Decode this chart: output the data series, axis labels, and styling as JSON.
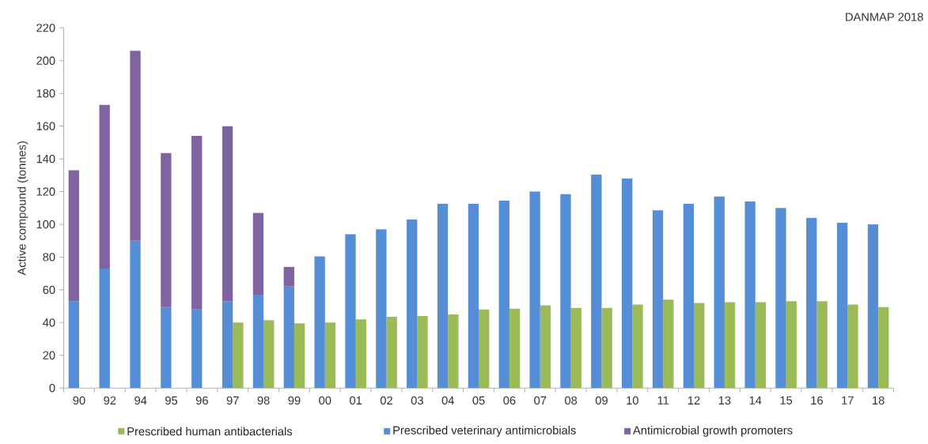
{
  "chart_data": {
    "type": "bar",
    "ylabel": "Active compound (tonnes)",
    "annotations": [
      "DANMAP 2018"
    ],
    "categories": [
      "90",
      "92",
      "94",
      "95",
      "96",
      "97",
      "98",
      "99",
      "00",
      "01",
      "02",
      "03",
      "04",
      "05",
      "06",
      "07",
      "08",
      "09",
      "10",
      "11",
      "12",
      "13",
      "14",
      "15",
      "16",
      "17",
      "18"
    ],
    "series": [
      {
        "name": "Prescribed human antibacterials",
        "color": "#9bbb59",
        "values": [
          null,
          null,
          null,
          null,
          null,
          40,
          41.5,
          39.5,
          40,
          42,
          43.5,
          44,
          45,
          48,
          48.5,
          50.5,
          49,
          49,
          51,
          54,
          52,
          52.5,
          52.5,
          53,
          53,
          51,
          49.5
        ]
      },
      {
        "name": "Prescribed veterinary antimicrobials",
        "color": "#558ed5",
        "values": [
          53,
          73,
          90,
          49.5,
          48,
          53,
          57,
          62,
          80.5,
          94,
          97,
          103,
          112.5,
          112.5,
          114.5,
          120,
          118.5,
          130.5,
          128,
          108.5,
          112.5,
          117,
          114,
          110,
          104,
          101,
          100
        ]
      },
      {
        "name": "Antimicrobial growth promoters",
        "color": "#8064a2",
        "base": [
          53,
          73,
          90,
          49.5,
          48,
          53,
          57,
          62,
          null,
          null,
          null,
          null,
          null,
          null,
          null,
          null,
          null,
          null,
          null,
          null,
          null,
          null,
          null,
          null,
          null,
          null,
          null
        ],
        "values": [
          80,
          100,
          116,
          94,
          106,
          107,
          50,
          12,
          null,
          null,
          null,
          null,
          null,
          null,
          null,
          null,
          null,
          null,
          null,
          null,
          null,
          null,
          null,
          null,
          null,
          null,
          null
        ]
      }
    ],
    "ylim": [
      0,
      220
    ],
    "yticks": [
      0,
      20,
      40,
      60,
      80,
      100,
      120,
      140,
      160,
      180,
      200,
      220
    ],
    "legend": "bottom"
  }
}
